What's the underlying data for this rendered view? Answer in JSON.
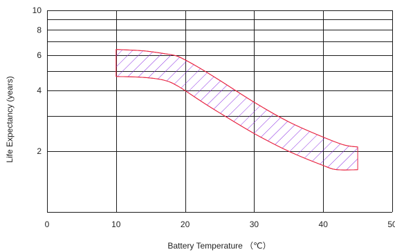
{
  "chart_data": {
    "type": "area",
    "title": "",
    "xlabel": "Battery Temperature （℃）",
    "ylabel": "Life Expectancy (years)",
    "xlim": [
      0,
      50
    ],
    "ylim": [
      1,
      10
    ],
    "y_scale": "log",
    "grid": true,
    "x_ticks": [
      0,
      10,
      20,
      30,
      40,
      50
    ],
    "x_tick_labels": [
      "0",
      "10",
      "20",
      "30",
      "40",
      "50"
    ],
    "y_ticks": [
      2,
      4,
      6,
      8,
      10
    ],
    "y_tick_labels": [
      "2",
      "4",
      "6",
      "8",
      "10"
    ],
    "y_grid_lines": [
      2,
      3,
      4,
      5,
      6,
      7,
      8,
      9,
      10
    ],
    "band_color": "#e8233f",
    "hatch_color": "#8a2be2",
    "series": [
      {
        "role": "upper",
        "x": [
          10,
          14,
          17,
          19,
          22,
          25,
          30,
          35,
          40,
          43,
          45
        ],
        "values": [
          6.4,
          6.3,
          6.1,
          5.9,
          5.2,
          4.5,
          3.5,
          2.8,
          2.35,
          2.15,
          2.1
        ]
      },
      {
        "role": "lower",
        "x": [
          10,
          14,
          17,
          19,
          22,
          25,
          30,
          35,
          40,
          42,
          45
        ],
        "values": [
          4.7,
          4.65,
          4.5,
          4.2,
          3.6,
          3.1,
          2.45,
          2.0,
          1.7,
          1.62,
          1.62
        ]
      }
    ]
  }
}
